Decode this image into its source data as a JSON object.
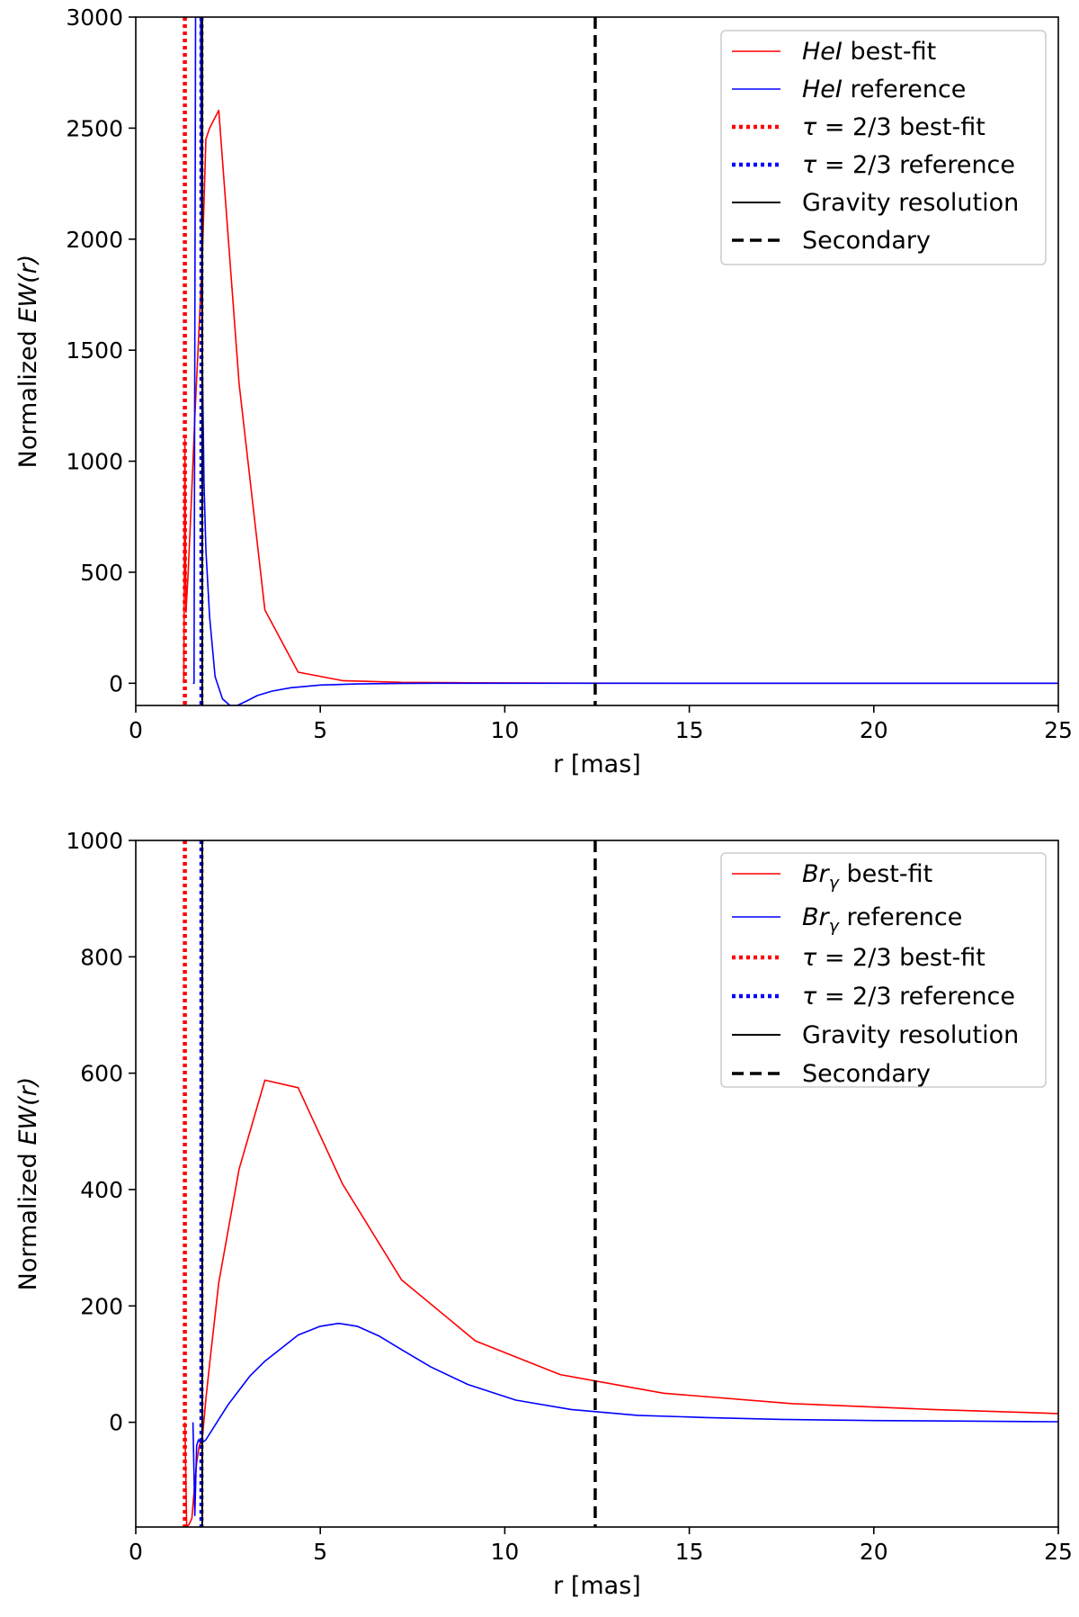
{
  "chart_data": [
    {
      "type": "line",
      "title": "",
      "xlabel": "r [mas]",
      "ylabel_prefix": "Normalized ",
      "ylabel_math": "EW(r)",
      "xlim": [
        0,
        25
      ],
      "ylim": [
        -100,
        3000
      ],
      "xticks": [
        0,
        5,
        10,
        15,
        20,
        25
      ],
      "xtick_labels": [
        "0",
        "5",
        "10",
        "15",
        "20",
        "25"
      ],
      "yticks": [
        0,
        500,
        1000,
        1500,
        2000,
        2500,
        3000
      ],
      "ytick_labels": [
        "0",
        "500",
        "1000",
        "1500",
        "2000",
        "2500",
        "3000"
      ],
      "grid": false,
      "legend_position": "top-right",
      "series": [
        {
          "name": "HeI best-fit",
          "legend_math": "HeI",
          "legend_rest": " best-fit",
          "color": "#ff0000",
          "style": "solid",
          "x": [
            1.3,
            1.33,
            1.36,
            1.42,
            1.5,
            1.6,
            1.7,
            1.8,
            1.9,
            2.0,
            2.25,
            2.8,
            3.5,
            4.4,
            5.6,
            7.2,
            9.0,
            11.0,
            15.0,
            20.0,
            25.0
          ],
          "values": [
            0,
            1100,
            320,
            500,
            800,
            1200,
            1550,
            1900,
            2450,
            2500,
            2580,
            1350,
            330,
            50,
            12,
            4,
            2,
            1,
            0,
            0,
            0
          ]
        },
        {
          "name": "HeI reference",
          "legend_math": "HeI",
          "legend_rest": " reference",
          "color": "#0000ff",
          "style": "solid",
          "x": [
            1.55,
            1.58,
            1.62,
            1.65,
            1.72,
            1.76,
            1.8,
            1.85,
            1.9,
            2.0,
            2.15,
            2.35,
            2.55,
            2.75,
            3.0,
            3.3,
            3.7,
            4.2,
            5.0,
            6.0,
            7.0,
            8.0,
            10.0,
            15.0,
            20.0,
            25.0
          ],
          "values": [
            0,
            0,
            3000,
            3000,
            3000,
            3000,
            1500,
            900,
            600,
            300,
            30,
            -70,
            -100,
            -100,
            -80,
            -55,
            -35,
            -20,
            -8,
            -3,
            -1,
            0,
            0,
            0,
            0,
            0
          ]
        },
        {
          "name": "τ = 2/3 best-fit",
          "legend_math": "τ",
          "legend_rest": " = 2/3 best-fit",
          "color": "#ff0000",
          "style": "dotted",
          "vline": 1.33
        },
        {
          "name": "τ = 2/3 reference",
          "legend_math": "τ",
          "legend_rest": " = 2/3 reference",
          "color": "#0000ff",
          "style": "dotted",
          "vline": 1.78
        },
        {
          "name": "Gravity resolution",
          "legend_math": "",
          "legend_rest": "Gravity resolution",
          "color": "#000000",
          "style": "thin",
          "vline": 1.8
        },
        {
          "name": "Secondary",
          "legend_math": "",
          "legend_rest": "Secondary",
          "color": "#000000",
          "style": "dashed",
          "vline": 12.45
        }
      ]
    },
    {
      "type": "line",
      "title": "",
      "xlabel": "r [mas]",
      "ylabel_prefix": "Normalized ",
      "ylabel_math": "EW(r)",
      "xlim": [
        0,
        25
      ],
      "ylim": [
        -180,
        1000
      ],
      "xticks": [
        0,
        5,
        10,
        15,
        20,
        25
      ],
      "xtick_labels": [
        "0",
        "5",
        "10",
        "15",
        "20",
        "25"
      ],
      "yticks": [
        0,
        200,
        400,
        600,
        800,
        1000
      ],
      "ytick_labels": [
        "0",
        "200",
        "400",
        "600",
        "800",
        "1000"
      ],
      "grid": false,
      "legend_position": "top-right",
      "series": [
        {
          "name": "Brγ best-fit",
          "legend_math": "Br",
          "legend_sub": "γ",
          "legend_rest": " best-fit",
          "color": "#ff0000",
          "style": "solid",
          "x": [
            1.33,
            1.38,
            1.45,
            1.52,
            1.58,
            1.65,
            1.72,
            1.8,
            1.9,
            2.0,
            2.25,
            2.8,
            3.5,
            4.4,
            5.6,
            7.2,
            9.2,
            11.5,
            14.3,
            17.8,
            21.6,
            25.0
          ],
          "values": [
            0,
            -180,
            -175,
            -165,
            -120,
            -70,
            -40,
            -30,
            40,
            100,
            240,
            435,
            588,
            575,
            410,
            245,
            140,
            82,
            50,
            32,
            22,
            15
          ]
        },
        {
          "name": "Brγ reference",
          "legend_math": "Br",
          "legend_sub": "γ",
          "legend_rest": " reference",
          "color": "#0000ff",
          "style": "solid",
          "x": [
            1.55,
            1.6,
            1.65,
            1.7,
            1.75,
            1.8,
            1.9,
            2.0,
            2.2,
            2.5,
            2.8,
            3.1,
            3.5,
            3.8,
            4.4,
            5.0,
            5.5,
            6.0,
            6.6,
            7.2,
            8.0,
            9.0,
            10.3,
            11.8,
            13.6,
            15.5,
            17.5,
            20.0,
            22.5,
            25.0
          ],
          "values": [
            0,
            -160,
            -40,
            -30,
            -35,
            -35,
            -30,
            -20,
            0,
            30,
            55,
            80,
            105,
            120,
            150,
            165,
            170,
            165,
            148,
            125,
            95,
            65,
            38,
            22,
            12,
            8,
            5,
            3,
            2,
            1
          ]
        },
        {
          "name": "τ = 2/3 best-fit",
          "legend_math": "τ",
          "legend_rest": " = 2/3 best-fit",
          "color": "#ff0000",
          "style": "dotted",
          "vline": 1.33
        },
        {
          "name": "τ = 2/3 reference",
          "legend_math": "τ",
          "legend_rest": " = 2/3 reference",
          "color": "#0000ff",
          "style": "dotted",
          "vline": 1.78
        },
        {
          "name": "Gravity resolution",
          "legend_math": "",
          "legend_rest": "Gravity resolution",
          "color": "#000000",
          "style": "thin",
          "vline": 1.8
        },
        {
          "name": "Secondary",
          "legend_math": "",
          "legend_rest": "Secondary",
          "color": "#000000",
          "style": "dashed",
          "vline": 12.45
        }
      ]
    }
  ]
}
